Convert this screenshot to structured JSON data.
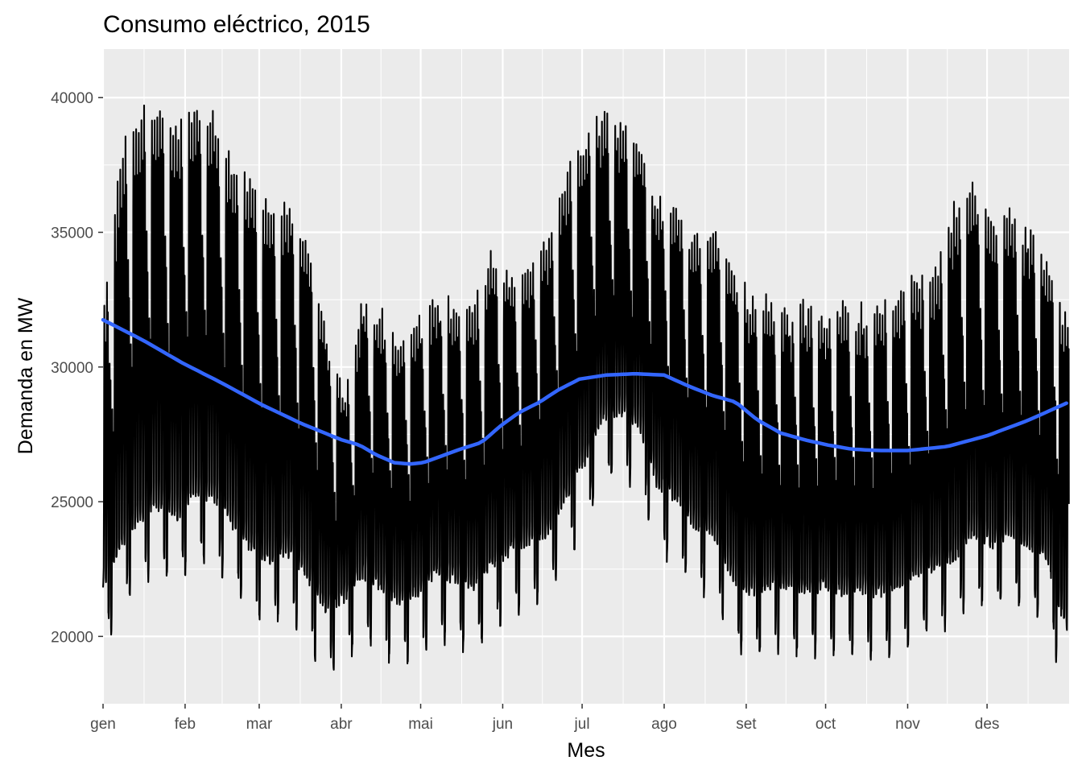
{
  "chart_data": {
    "type": "line",
    "title": "Consumo eléctrico, 2015",
    "xlabel": "Mes",
    "ylabel": "Demanda en MW",
    "x_ticks": [
      "gen",
      "feb",
      "mar",
      "abr",
      "mai",
      "jun",
      "jul",
      "ago",
      "set",
      "oct",
      "nov",
      "des"
    ],
    "x_tick_days": [
      0,
      31,
      59,
      90,
      120,
      151,
      181,
      212,
      243,
      273,
      304,
      334
    ],
    "xlim_days": [
      0,
      365
    ],
    "y_ticks": [
      20000,
      25000,
      30000,
      35000,
      40000
    ],
    "ylim": [
      17500,
      41800
    ],
    "grid": true,
    "legend": "none",
    "series": [
      {
        "kind": "hourly demand (daily min / max envelope)",
        "color": "#000000",
        "day": [
          0,
          7,
          14,
          21,
          28,
          35,
          42,
          49,
          56,
          63,
          70,
          77,
          84,
          91,
          98,
          105,
          112,
          119,
          126,
          133,
          140,
          147,
          154,
          161,
          168,
          175,
          182,
          189,
          196,
          203,
          210,
          217,
          224,
          231,
          238,
          245,
          252,
          259,
          266,
          273,
          280,
          287,
          294,
          301,
          308,
          315,
          322,
          329,
          336,
          343,
          350,
          357,
          364
        ],
        "weekday_max": [
          32500,
          38500,
          40000,
          40500,
          39500,
          40500,
          39800,
          37800,
          37500,
          36200,
          36600,
          35500,
          31800,
          29300,
          33200,
          32500,
          31500,
          32000,
          33000,
          33000,
          32800,
          34800,
          33500,
          34400,
          35300,
          37800,
          39000,
          39800,
          39300,
          38500,
          36800,
          36200,
          35200,
          35700,
          34200,
          33000,
          32800,
          32500,
          32800,
          32300,
          32600,
          32500,
          32800,
          33200,
          33800,
          34000,
          36500,
          37200,
          35500,
          36500,
          35500,
          34500,
          32000
        ],
        "weekend_min": [
          19400,
          21000,
          22000,
          22500,
          22000,
          23000,
          22800,
          21800,
          21000,
          20500,
          20800,
          20000,
          18600,
          19000,
          20000,
          19500,
          19000,
          19200,
          20000,
          19800,
          19500,
          20200,
          20800,
          21200,
          21500,
          22800,
          24000,
          25800,
          26000,
          25500,
          23200,
          22800,
          21800,
          21500,
          19800,
          19300,
          19500,
          19500,
          19200,
          19500,
          19300,
          19400,
          19200,
          19600,
          20000,
          20200,
          20500,
          21500,
          21000,
          21500,
          21000,
          20500,
          18000
        ]
      },
      {
        "kind": "smoothed trend",
        "color": "#3366ff",
        "day": [
          0,
          15,
          30,
          45,
          60,
          75,
          90,
          97,
          103,
          110,
          116,
          121,
          128,
          135,
          143,
          150,
          157,
          165,
          172,
          180,
          190,
          201,
          212,
          221,
          230,
          239,
          247,
          256,
          265,
          274,
          283,
          293,
          304,
          319,
          334,
          349,
          365
        ],
        "values": [
          31750,
          31000,
          30150,
          29400,
          28600,
          27900,
          27300,
          27100,
          26750,
          26450,
          26400,
          26450,
          26700,
          26950,
          27200,
          27800,
          28300,
          28700,
          29150,
          29550,
          29700,
          29750,
          29700,
          29300,
          28950,
          28700,
          28050,
          27550,
          27300,
          27100,
          26950,
          26900,
          26900,
          27050,
          27450,
          28000,
          28700
        ]
      }
    ]
  }
}
